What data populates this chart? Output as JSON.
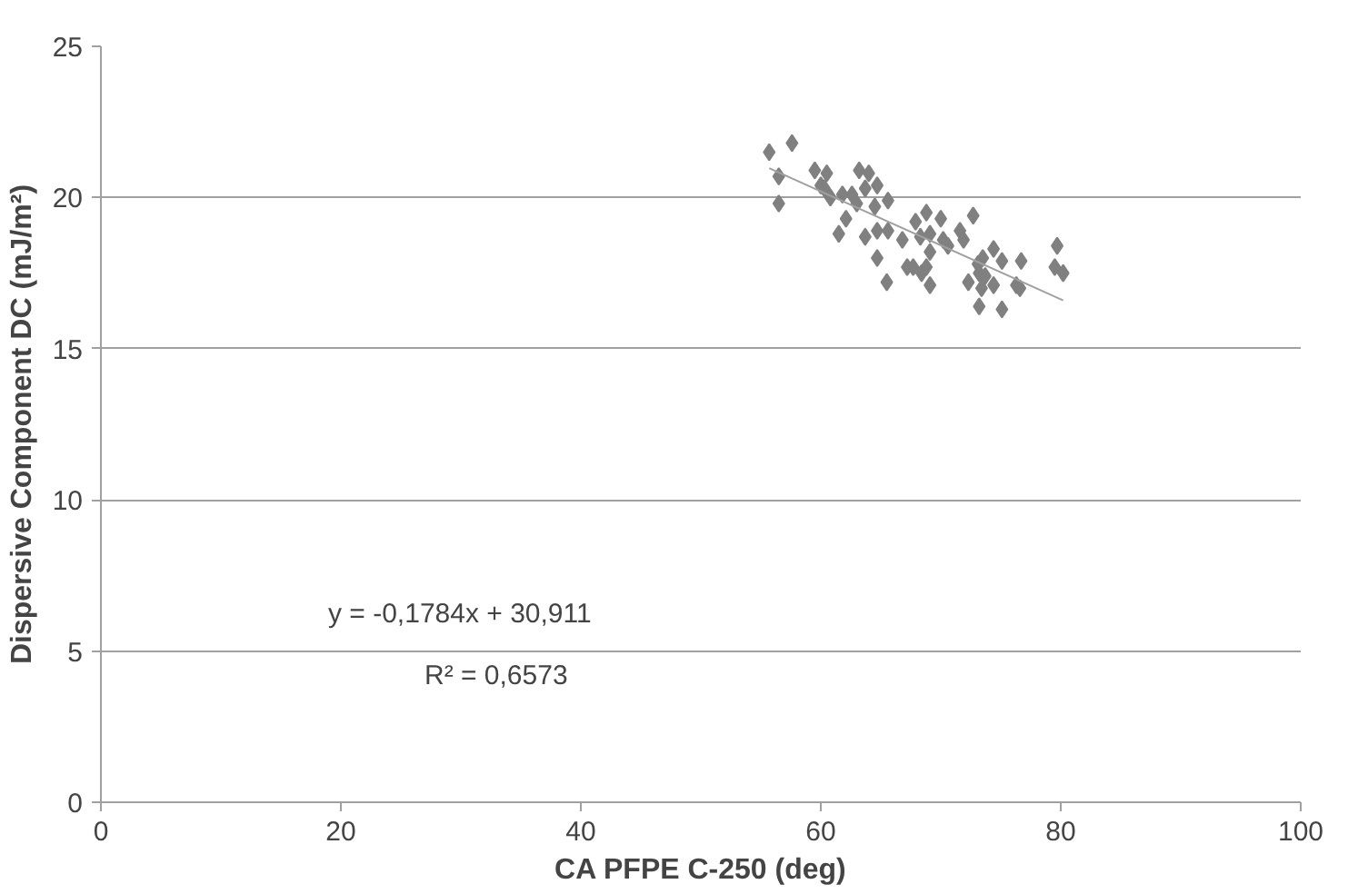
{
  "chart_data": {
    "type": "scatter",
    "xlabel": "CA PFPE C-250 (deg)",
    "ylabel": "Dispersive Component DC (mJ/m²)",
    "xlim": [
      0,
      100
    ],
    "ylim": [
      0,
      25
    ],
    "xticks": [
      0,
      20,
      40,
      60,
      80,
      100
    ],
    "yticks": [
      0,
      5,
      10,
      15,
      20,
      25
    ],
    "grid": "y",
    "annotations": [
      "y = -0,1784x + 30,911",
      "R² = 0,6573"
    ],
    "series": [
      {
        "marker": "diamond",
        "color": "#808080",
        "x": [
          55.7,
          57.6,
          56.5,
          56.5,
          59.5,
          60.0,
          60.5,
          60.3,
          60.8,
          61.8,
          62.6,
          63.2,
          64.0,
          63.7,
          64.7,
          64.5,
          63.0,
          65.6,
          62.1,
          61.5,
          63.7,
          64.7,
          65.6,
          64.7,
          65.5,
          66.8,
          67.9,
          68.8,
          70.0,
          68.3,
          69.1,
          69.1,
          70.2,
          70.6,
          71.6,
          71.9,
          72.7,
          67.2,
          67.7,
          68.4,
          68.8,
          69.1,
          72.3,
          73.1,
          73.5,
          73.2,
          73.7,
          73.4,
          73.2,
          74.4,
          74.4,
          75.1,
          75.1,
          76.3,
          76.6,
          76.7,
          79.7,
          79.5,
          80.2
        ],
        "values": [
          21.5,
          21.8,
          20.7,
          19.8,
          20.9,
          20.4,
          20.8,
          20.3,
          20.0,
          20.1,
          20.1,
          20.9,
          20.8,
          20.3,
          20.4,
          19.7,
          19.8,
          19.9,
          19.3,
          18.8,
          18.7,
          18.9,
          18.9,
          18.0,
          17.2,
          18.6,
          19.2,
          19.5,
          19.3,
          18.7,
          18.8,
          18.2,
          18.6,
          18.4,
          18.9,
          18.6,
          19.4,
          17.7,
          17.7,
          17.5,
          17.7,
          17.1,
          17.2,
          17.8,
          18.0,
          17.5,
          17.4,
          17.0,
          16.4,
          18.3,
          17.1,
          17.9,
          16.3,
          17.1,
          17.0,
          17.9,
          18.4,
          17.7,
          17.5
        ]
      },
      {
        "type": "line",
        "marker": "none",
        "color": "#a0a0a0",
        "x": [
          55.7,
          80.2
        ],
        "values": [
          20.97,
          16.6
        ]
      }
    ]
  }
}
